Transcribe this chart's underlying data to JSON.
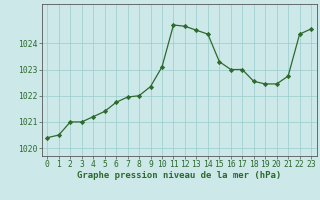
{
  "x": [
    0,
    1,
    2,
    3,
    4,
    5,
    6,
    7,
    8,
    9,
    10,
    11,
    12,
    13,
    14,
    15,
    16,
    17,
    18,
    19,
    20,
    21,
    22,
    23
  ],
  "y": [
    1020.4,
    1020.5,
    1021.0,
    1021.0,
    1021.2,
    1021.4,
    1021.75,
    1021.95,
    1022.0,
    1022.35,
    1023.1,
    1024.7,
    1024.65,
    1024.5,
    1024.35,
    1023.3,
    1023.0,
    1023.0,
    1022.55,
    1022.45,
    1022.45,
    1022.75,
    1024.35,
    1024.55
  ],
  "ylim": [
    1019.7,
    1025.5
  ],
  "yticks": [
    1020,
    1021,
    1022,
    1023,
    1024
  ],
  "xticks": [
    0,
    1,
    2,
    3,
    4,
    5,
    6,
    7,
    8,
    9,
    10,
    11,
    12,
    13,
    14,
    15,
    16,
    17,
    18,
    19,
    20,
    21,
    22,
    23
  ],
  "xlabel": "Graphe pression niveau de la mer (hPa)",
  "line_color": "#2d6a2d",
  "marker": "D",
  "marker_size": 2.2,
  "bg_color": "#cce8e8",
  "grid_color": "#99cccc",
  "axis_color": "#555555",
  "label_fontsize": 6.5,
  "tick_fontsize": 5.8
}
